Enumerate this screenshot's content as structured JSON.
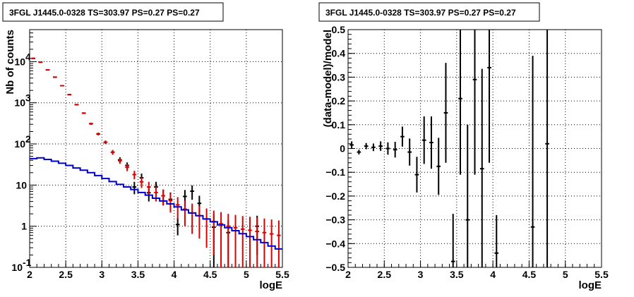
{
  "chart_data": [
    {
      "type": "scatter",
      "title": "3FGL J1445.0-0328 TS=303.97 PS=0.27 PS=0.27",
      "xlabel": "logE",
      "ylabel": "Nb of counts",
      "xlim": [
        2,
        5.5
      ],
      "ylim": [
        0.1,
        60000
      ],
      "ylog": true,
      "grid": true,
      "x_ticks": [
        "2",
        "2.5",
        "3",
        "3.5",
        "4",
        "4.5",
        "5",
        "5.5"
      ],
      "y_ticks": [
        {
          "value": 0.1,
          "base": "10",
          "exp": "-1"
        },
        {
          "value": 1,
          "label": "1"
        },
        {
          "value": 10,
          "label": "10"
        },
        {
          "value": 100,
          "base": "10",
          "exp": "2"
        },
        {
          "value": 1000,
          "base": "10",
          "exp": "3"
        },
        {
          "value": 10000,
          "base": "10",
          "exp": "4"
        }
      ],
      "bin_width": 0.1,
      "series": [
        {
          "color": "#000000",
          "style": "errorbar",
          "x": [
            2.05,
            2.15,
            2.25,
            2.35,
            2.45,
            2.55,
            2.65,
            2.75,
            2.85,
            2.95,
            3.05,
            3.15,
            3.25,
            3.35,
            3.45,
            3.55,
            3.65,
            3.75,
            3.85,
            3.95,
            4.05,
            4.15,
            4.25,
            4.35,
            4.55,
            4.75,
            5.15
          ],
          "y": [
            12000,
            9700,
            6300,
            4200,
            2600,
            1580,
            900,
            560,
            310,
            175,
            110,
            63,
            41,
            30,
            9,
            15,
            6.5,
            9,
            5.5,
            4.5,
            1.1,
            5.3,
            7.1,
            3.6,
            0.95,
            0.7,
            1.0
          ],
          "err": [
            110,
            100,
            80,
            65,
            51,
            40,
            30,
            24,
            18,
            13,
            10.5,
            8,
            6.5,
            5.5,
            3,
            4,
            2.5,
            3,
            2.3,
            2.1,
            0.5,
            2.3,
            2.7,
            1.9,
            0.95,
            0.7,
            0.8
          ]
        },
        {
          "color": "#dd0000",
          "style": "errorbar",
          "x": [
            2.05,
            2.15,
            2.25,
            2.35,
            2.45,
            2.55,
            2.65,
            2.75,
            2.85,
            2.95,
            3.05,
            3.15,
            3.25,
            3.35,
            3.45,
            3.55,
            3.65,
            3.75,
            3.85,
            3.95,
            4.05,
            4.15,
            4.25,
            4.35,
            4.45,
            4.55,
            4.65,
            4.75,
            4.85,
            4.95,
            5.05,
            5.15,
            5.25,
            5.35,
            5.45
          ],
          "y": [
            12000,
            9700,
            6300,
            4200,
            2600,
            1580,
            900,
            560,
            310,
            175,
            110,
            63,
            39,
            27,
            18,
            12,
            9,
            6.6,
            5.5,
            4.2,
            3.3,
            2.6,
            2.1,
            1.8,
            1.5,
            1.3,
            1.15,
            1.0,
            0.92,
            0.85,
            0.8,
            0.75,
            0.7,
            0.65,
            0.6
          ],
          "err": [
            110,
            100,
            80,
            65,
            51,
            40,
            30,
            24,
            18,
            13,
            10.5,
            8,
            6.2,
            5.2,
            4.2,
            3.5,
            3,
            2.6,
            2.3,
            2.05,
            1.8,
            1.6,
            1.45,
            1.3,
            1.2,
            1.1,
            1.05,
            1.0,
            0.96,
            0.92,
            0.9,
            0.87,
            0.84,
            0.81,
            0.78
          ]
        },
        {
          "color": "#0000cc",
          "style": "step",
          "x": [
            2.05,
            2.15,
            2.25,
            2.35,
            2.45,
            2.55,
            2.65,
            2.75,
            2.85,
            2.95,
            3.05,
            3.15,
            3.25,
            3.35,
            3.45,
            3.55,
            3.65,
            3.75,
            3.85,
            3.95,
            4.05,
            4.15,
            4.25,
            4.35,
            4.45,
            4.55,
            4.65,
            4.75,
            4.85,
            4.95,
            5.05,
            5.15,
            5.25,
            5.35,
            5.45
          ],
          "y": [
            44,
            46,
            42,
            38,
            34,
            30,
            26,
            23,
            20,
            17,
            14.5,
            12.2,
            10.4,
            9,
            7.8,
            6.6,
            5.7,
            4.8,
            4.1,
            3.5,
            2.95,
            2.5,
            2.1,
            1.8,
            1.5,
            1.28,
            1.08,
            0.92,
            0.78,
            0.66,
            0.56,
            0.47,
            0.4,
            0.33,
            0.28
          ]
        }
      ]
    },
    {
      "type": "scatter",
      "title": "3FGL J1445.0-0328 TS=303.97 PS=0.27 PS=0.27",
      "xlabel": "logE",
      "ylabel": "(data-model)/model",
      "xlim": [
        2,
        5.5
      ],
      "ylim": [
        -0.5,
        0.5
      ],
      "grid": true,
      "x_ticks": [
        "2",
        "2.5",
        "3",
        "3.5",
        "4",
        "4.5",
        "5",
        "5.5"
      ],
      "y_ticks": [
        "−0.5",
        "−0.4",
        "−0.3",
        "−0.2",
        "−0.1",
        "0",
        "0.1",
        "0.2",
        "0.3",
        "0.4",
        "0.5"
      ],
      "bin_width": 0.1,
      "series": [
        {
          "color": "#000000",
          "style": "errorbar",
          "x": [
            2.05,
            2.15,
            2.25,
            2.35,
            2.45,
            2.55,
            2.65,
            2.75,
            2.85,
            2.95,
            3.05,
            3.15,
            3.25,
            3.35,
            3.45,
            3.55,
            3.65,
            3.75,
            3.85,
            3.95,
            4.05,
            4.55,
            4.75
          ],
          "y": [
            0.015,
            -0.015,
            0.01,
            0.005,
            0.01,
            0.0,
            -0.005,
            0.05,
            -0.015,
            -0.11,
            0.035,
            0.025,
            -0.075,
            0.15,
            -0.475,
            0.21,
            -0.3,
            0.29,
            -0.085,
            0.34,
            -0.44,
            -0.33,
            0.02
          ],
          "err": [
            0.015,
            0.01,
            0.013,
            0.016,
            0.02,
            0.026,
            0.033,
            0.042,
            0.057,
            0.075,
            0.1,
            0.11,
            0.12,
            0.21,
            0.2,
            0.32,
            0.4,
            0.4,
            0.42,
            0.4,
            0.16,
            0.72,
            1.0
          ]
        }
      ]
    }
  ]
}
